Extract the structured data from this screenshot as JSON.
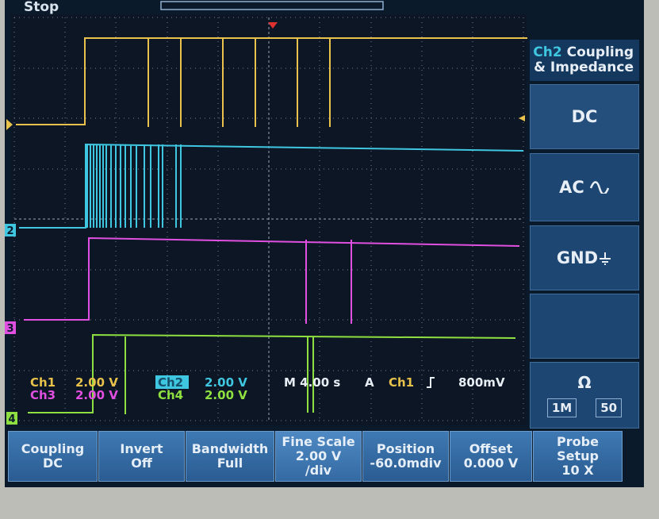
{
  "status": "Stop",
  "menu": {
    "channel": "Ch2",
    "title": "Coupling",
    "subtitle": "& Impedance",
    "options": [
      "DC",
      "AC",
      "GND"
    ],
    "impedance": {
      "label": "Ω",
      "options": [
        "1M",
        "50"
      ]
    }
  },
  "readouts": [
    {
      "channel": "Ch1",
      "scale": "2.00 V"
    },
    {
      "channel": "Ch3",
      "scale": "2.00 V"
    },
    {
      "channel": "Ch2",
      "scale": "2.00 V"
    },
    {
      "channel": "Ch4",
      "scale": "2.00 V"
    }
  ],
  "timebase": {
    "scale": "M 4.00 s",
    "mode": "A",
    "source": "Ch1",
    "level": "800mV"
  },
  "markers": [
    "2",
    "3",
    "4"
  ],
  "buttons": [
    [
      "Coupling",
      "DC"
    ],
    [
      "Invert",
      "Off"
    ],
    [
      "Bandwidth",
      "Full"
    ],
    [
      "Fine Scale",
      "2.00 V",
      "/div"
    ],
    [
      "Position",
      "-60.0mdiv"
    ],
    [
      "Offset",
      "0.000 V"
    ],
    [
      "Probe",
      "Setup",
      "10 X"
    ]
  ]
}
